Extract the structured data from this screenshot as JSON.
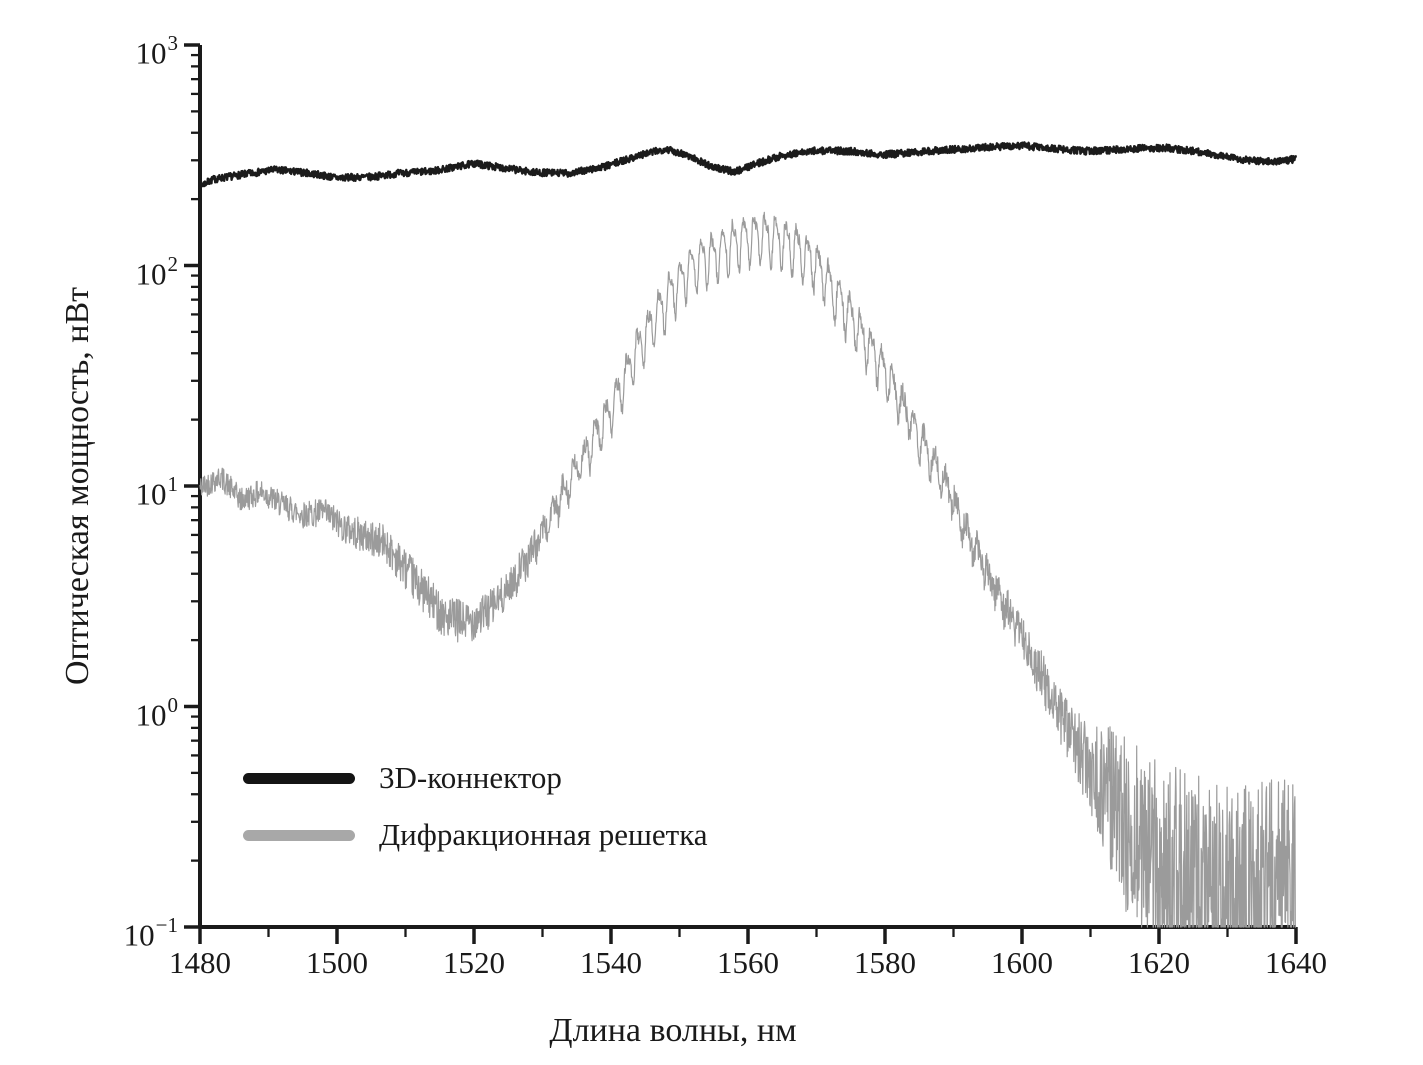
{
  "figure": {
    "background": "#ffffff",
    "text_color": "#1a1a1a"
  },
  "chart_data": {
    "type": "line",
    "title": "",
    "xlabel": "Длина волны, нм",
    "ylabel": "Оптическая мощность, нВт",
    "grid": false,
    "legend_position": "lower-left",
    "x_axis": {
      "min": 1480,
      "max": 1640,
      "major_ticks": [
        1480,
        1500,
        1520,
        1540,
        1560,
        1580,
        1600,
        1620,
        1640
      ],
      "minor_ticks": [
        1490,
        1510,
        1530,
        1550,
        1570,
        1590,
        1610,
        1630
      ]
    },
    "y_axis": {
      "scale": "log",
      "min": 0.1,
      "max": 1000,
      "major_tick_exponents": [
        3,
        2,
        1,
        0,
        -1
      ],
      "major_tick_values": [
        1000,
        100,
        10,
        1,
        0.1
      ],
      "minor_tick_mantissas": [
        2,
        3,
        4,
        5,
        6,
        7,
        8,
        9
      ],
      "unit": "нВт"
    },
    "series": [
      {
        "name": "3D-коннектор",
        "color": "#1b1b1b",
        "stroke_width": 2.4,
        "seed": 7,
        "sample_step_nm": 0.06,
        "anchor_points": [
          [
            1480,
            230
          ],
          [
            1482,
            246
          ],
          [
            1486,
            258
          ],
          [
            1491,
            272
          ],
          [
            1496,
            262
          ],
          [
            1500,
            250
          ],
          [
            1505,
            252
          ],
          [
            1509,
            262
          ],
          [
            1514,
            268
          ],
          [
            1520,
            290
          ],
          [
            1524,
            278
          ],
          [
            1529,
            264
          ],
          [
            1534,
            262
          ],
          [
            1539,
            280
          ],
          [
            1544,
            315
          ],
          [
            1548,
            338
          ],
          [
            1551,
            318
          ],
          [
            1555,
            278
          ],
          [
            1558,
            266
          ],
          [
            1561,
            288
          ],
          [
            1565,
            315
          ],
          [
            1570,
            332
          ],
          [
            1575,
            330
          ],
          [
            1580,
            318
          ],
          [
            1585,
            328
          ],
          [
            1590,
            336
          ],
          [
            1596,
            345
          ],
          [
            1600,
            350
          ],
          [
            1605,
            338
          ],
          [
            1609,
            330
          ],
          [
            1613,
            334
          ],
          [
            1617,
            340
          ],
          [
            1621,
            342
          ],
          [
            1625,
            330
          ],
          [
            1629,
            316
          ],
          [
            1633,
            300
          ],
          [
            1637,
            296
          ],
          [
            1640,
            304
          ]
        ],
        "noise_log10": [
          [
            1480,
            0.016
          ],
          [
            1640,
            0.016
          ]
        ]
      },
      {
        "name": "Дифракционная решетка",
        "color": "#9b9b9b",
        "stroke_width": 1.2,
        "seed": 42,
        "sample_step_nm": 0.06,
        "anchor_points": [
          [
            1480,
            9.8
          ],
          [
            1483,
            11.0
          ],
          [
            1486,
            8.6
          ],
          [
            1489,
            9.4
          ],
          [
            1492,
            8.2
          ],
          [
            1495,
            7.4
          ],
          [
            1498,
            7.6
          ],
          [
            1501,
            6.5
          ],
          [
            1504,
            5.9
          ],
          [
            1507,
            5.5
          ],
          [
            1510,
            4.2
          ],
          [
            1513,
            3.2
          ],
          [
            1516,
            2.5
          ],
          [
            1519,
            2.4
          ],
          [
            1522,
            2.7
          ],
          [
            1525,
            3.4
          ],
          [
            1528,
            4.8
          ],
          [
            1531,
            7.0
          ],
          [
            1534,
            10.5
          ],
          [
            1537,
            15
          ],
          [
            1540,
            22
          ],
          [
            1543,
            36
          ],
          [
            1546,
            54
          ],
          [
            1549,
            77
          ],
          [
            1552,
            100
          ],
          [
            1555,
            110
          ],
          [
            1558,
            126
          ],
          [
            1561,
            136
          ],
          [
            1564,
            132
          ],
          [
            1567,
            120
          ],
          [
            1570,
            100
          ],
          [
            1573,
            72
          ],
          [
            1576,
            52
          ],
          [
            1579,
            37
          ],
          [
            1582,
            25
          ],
          [
            1585,
            16.5
          ],
          [
            1588,
            11.5
          ],
          [
            1591,
            7.2
          ],
          [
            1594,
            4.6
          ],
          [
            1597,
            3.0
          ],
          [
            1600,
            2.1
          ],
          [
            1603,
            1.35
          ],
          [
            1606,
            0.85
          ],
          [
            1609,
            0.58
          ],
          [
            1612,
            0.42
          ],
          [
            1615,
            0.3
          ],
          [
            1618,
            0.22
          ],
          [
            1621,
            0.18
          ],
          [
            1624,
            0.16
          ],
          [
            1627,
            0.15
          ],
          [
            1630,
            0.14
          ],
          [
            1634,
            0.14
          ],
          [
            1637,
            0.15
          ],
          [
            1640,
            0.16
          ]
        ],
        "noise_log10": [
          [
            1480,
            0.055
          ],
          [
            1495,
            0.06
          ],
          [
            1505,
            0.08
          ],
          [
            1512,
            0.095
          ],
          [
            1518,
            0.1
          ],
          [
            1524,
            0.085
          ],
          [
            1532,
            0.055
          ],
          [
            1540,
            0.035
          ],
          [
            1550,
            0.028
          ],
          [
            1560,
            0.025
          ],
          [
            1570,
            0.03
          ],
          [
            1580,
            0.04
          ],
          [
            1588,
            0.055
          ],
          [
            1595,
            0.07
          ],
          [
            1601,
            0.09
          ],
          [
            1606,
            0.13
          ],
          [
            1610,
            0.2
          ],
          [
            1614,
            0.38
          ],
          [
            1618,
            0.46
          ],
          [
            1623,
            0.5
          ],
          [
            1630,
            0.5
          ],
          [
            1640,
            0.5
          ]
        ],
        "ripple": {
          "period_nm": 1.55,
          "harmonic2": 0.35,
          "amplitude_log10": [
            [
              1480,
              0
            ],
            [
              1524,
              0
            ],
            [
              1530,
              0.04
            ],
            [
              1536,
              0.07
            ],
            [
              1542,
              0.09
            ],
            [
              1548,
              0.1
            ],
            [
              1554,
              0.1
            ],
            [
              1560,
              0.1
            ],
            [
              1566,
              0.1
            ],
            [
              1572,
              0.095
            ],
            [
              1578,
              0.09
            ],
            [
              1584,
              0.07
            ],
            [
              1590,
              0.05
            ],
            [
              1596,
              0.03
            ],
            [
              1602,
              0.015
            ],
            [
              1608,
              0
            ]
          ]
        }
      }
    ]
  },
  "legend": {
    "items": [
      {
        "label": "3D-коннектор",
        "color": "#141414"
      },
      {
        "label": "Дифракционная решетка",
        "color": "#a8a8a8"
      }
    ]
  }
}
